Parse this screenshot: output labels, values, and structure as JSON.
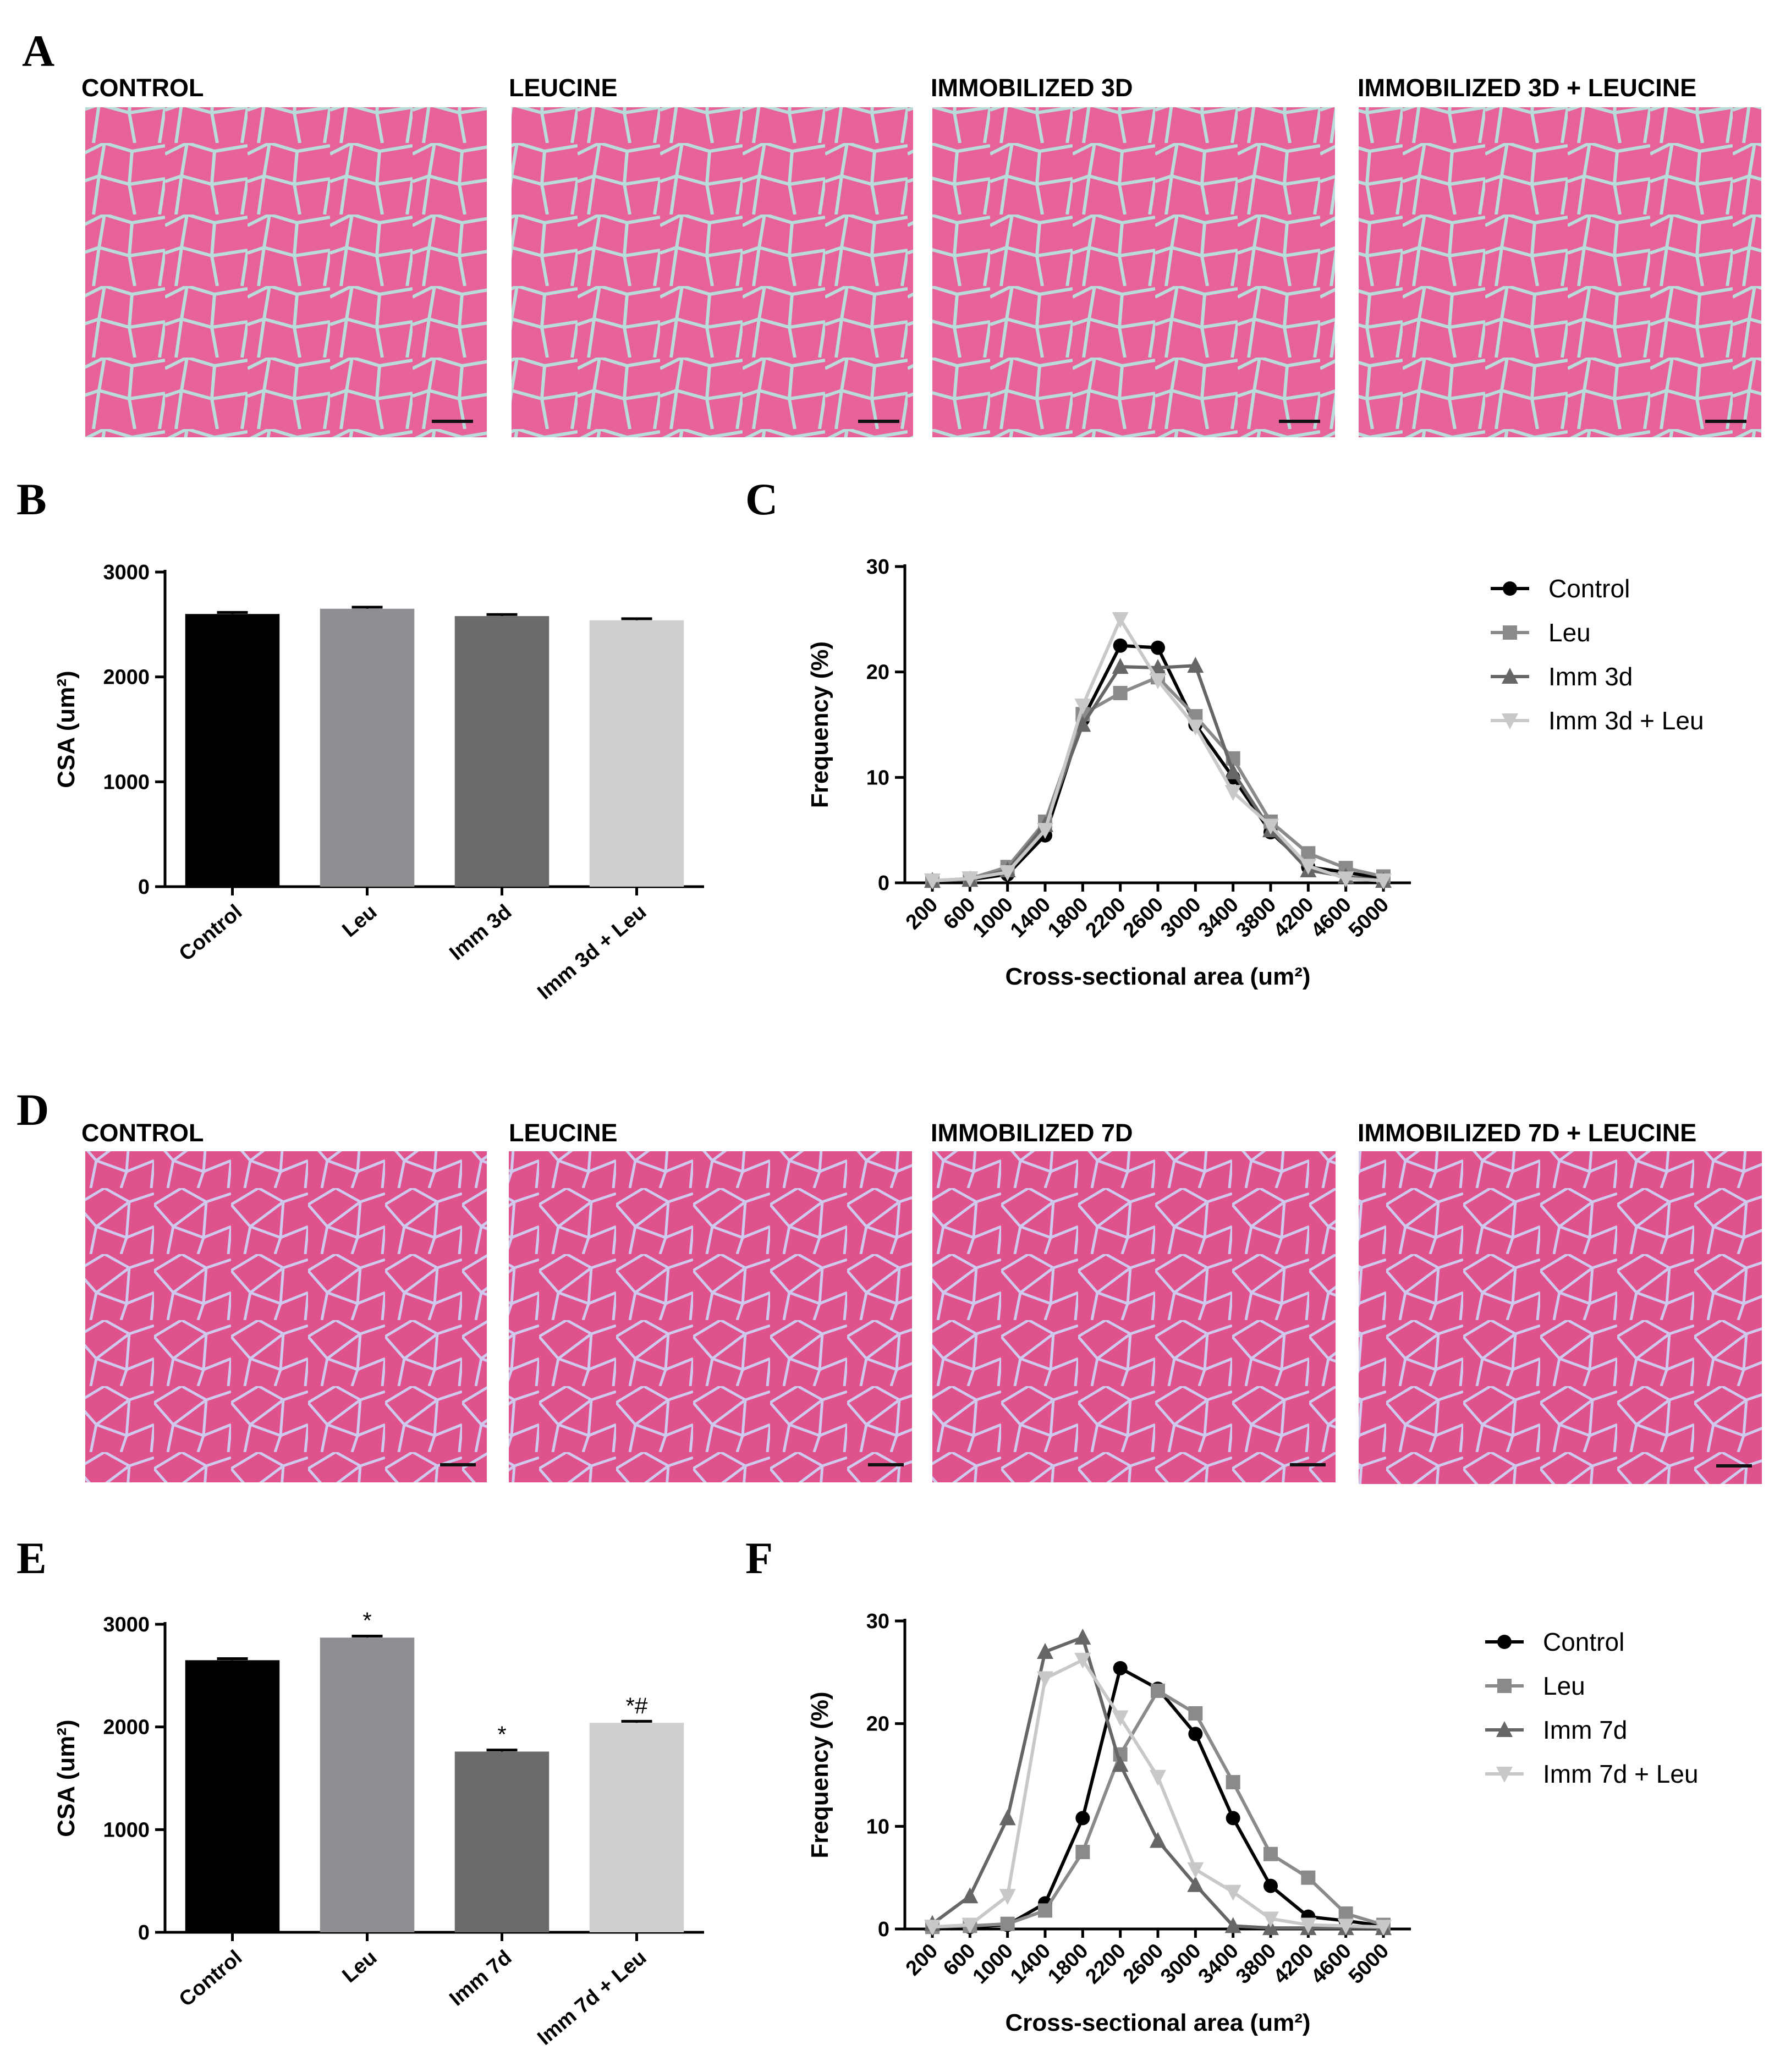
{
  "figure": {
    "panel_labels": {
      "A": "A",
      "B": "B",
      "C": "C",
      "D": "D",
      "E": "E",
      "F": "F"
    },
    "micrographs_top": {
      "titles": [
        "CONTROL",
        "LEUCINE",
        "IMMOBILIZED 3D",
        "IMMOBILIZED 3D + LEUCINE"
      ],
      "stain_color": "#e8629a",
      "membrane_color": "#b9dcd8"
    },
    "micrographs_bottom": {
      "titles": [
        "CONTROL",
        "LEUCINE",
        "IMMOBILIZED 7D",
        "IMMOBILIZED 7D + LEUCINE"
      ],
      "stain_color": "#e0528c",
      "membrane_color": "#c9c7ea"
    }
  },
  "chart_data": [
    {
      "id": "B",
      "type": "bar",
      "categories": [
        "Control",
        "Leu",
        "Imm 3d",
        "Imm 3d + Leu"
      ],
      "values": [
        2600,
        2650,
        2580,
        2540
      ],
      "errors": [
        15,
        15,
        15,
        15
      ],
      "annotations": [
        "",
        "",
        "",
        ""
      ],
      "colors": [
        "#000000",
        "#8f8f93",
        "#6b6b6b",
        "#cfcfcf"
      ],
      "ylabel": "CSA (um²)",
      "ylim": [
        0,
        3000
      ],
      "yticks": [
        0,
        1000,
        2000,
        3000
      ]
    },
    {
      "id": "C",
      "type": "line",
      "x": [
        "200",
        "600",
        "1000",
        "1400",
        "1800",
        "2200",
        "2600",
        "3000",
        "3400",
        "3800",
        "4200",
        "4600",
        "5000"
      ],
      "series": [
        {
          "name": "Control",
          "color": "#000000",
          "marker": "circle",
          "values": [
            0.2,
            0.3,
            0.8,
            4.5,
            15.5,
            22.5,
            22.3,
            15,
            10,
            4.8,
            1.5,
            1.0,
            0.4
          ]
        },
        {
          "name": "Leu",
          "color": "#8a8a8a",
          "marker": "square",
          "values": [
            0.2,
            0.4,
            1.5,
            5.8,
            16,
            18,
            19.5,
            15.8,
            11.8,
            5.8,
            2.8,
            1.4,
            0.6
          ]
        },
        {
          "name": "Imm 3d",
          "color": "#666666",
          "marker": "triangle-up",
          "values": [
            0.2,
            0.3,
            1.2,
            5.5,
            15,
            20.5,
            20.4,
            20.6,
            10.5,
            5,
            1.2,
            0.6,
            0.2
          ]
        },
        {
          "name": "Imm 3d + Leu",
          "color": "#c8c8c8",
          "marker": "triangle-down",
          "values": [
            0.2,
            0.4,
            1.0,
            5.0,
            16.8,
            25,
            19.2,
            14.8,
            8.6,
            5.4,
            1.6,
            0.4,
            0.2
          ]
        }
      ],
      "ylabel": "Frequency (%)",
      "xlabel": "Cross-sectional area (um²)",
      "ylim": [
        0,
        30
      ],
      "yticks": [
        0,
        10,
        20,
        30
      ]
    },
    {
      "id": "E",
      "type": "bar",
      "categories": [
        "Control",
        "Leu",
        "Imm 7d",
        "Imm 7d + Leu"
      ],
      "values": [
        2650,
        2870,
        1760,
        2040
      ],
      "errors": [
        15,
        15,
        15,
        15
      ],
      "annotations": [
        "",
        "*",
        "*",
        "*#"
      ],
      "colors": [
        "#000000",
        "#8f8f93",
        "#6b6b6b",
        "#cfcfcf"
      ],
      "ylabel": "CSA (um²)",
      "ylim": [
        0,
        3000
      ],
      "yticks": [
        0,
        1000,
        2000,
        3000
      ]
    },
    {
      "id": "F",
      "type": "line",
      "x": [
        "200",
        "600",
        "1000",
        "1400",
        "1800",
        "2200",
        "2600",
        "3000",
        "3400",
        "3800",
        "4200",
        "4600",
        "5000"
      ],
      "series": [
        {
          "name": "Control",
          "color": "#000000",
          "marker": "circle",
          "values": [
            0.2,
            0.2,
            0.4,
            2.5,
            10.8,
            25.4,
            23.4,
            19,
            10.8,
            4.2,
            1.2,
            0.8,
            0.3
          ]
        },
        {
          "name": "Leu",
          "color": "#8a8a8a",
          "marker": "square",
          "values": [
            0.2,
            0.3,
            0.5,
            1.8,
            7.5,
            17,
            23.2,
            21,
            14.3,
            7.3,
            5.0,
            1.5,
            0.4
          ]
        },
        {
          "name": "Imm 7d",
          "color": "#666666",
          "marker": "triangle-up",
          "values": [
            0.5,
            3.2,
            10.8,
            27,
            28.4,
            16,
            8.6,
            4.3,
            0.3,
            0.1,
            0.1,
            0.1,
            0.1
          ]
        },
        {
          "name": "Imm 7d + Leu",
          "color": "#c8c8c8",
          "marker": "triangle-down",
          "values": [
            0.2,
            0.4,
            3.2,
            24.4,
            26.2,
            20.6,
            14.8,
            5.8,
            3.6,
            1.0,
            0.4,
            0.3,
            0.2
          ]
        }
      ],
      "ylabel": "Frequency (%)",
      "xlabel": "Cross-sectional area (um²)",
      "ylim": [
        0,
        30
      ],
      "yticks": [
        0,
        10,
        20,
        30
      ]
    }
  ]
}
